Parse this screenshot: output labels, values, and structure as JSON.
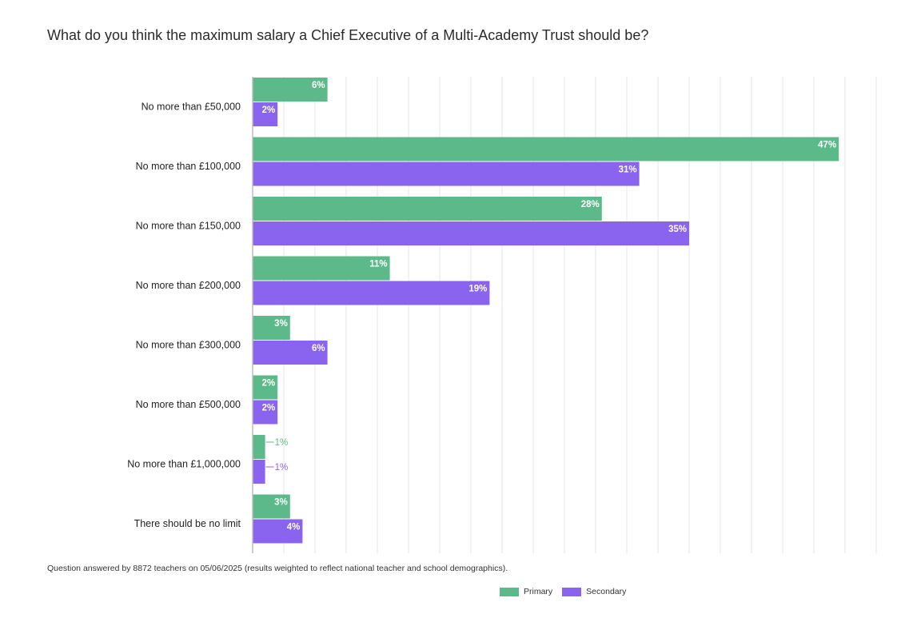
{
  "title": "What do you think the maximum salary a Chief Executive of a Multi-Academy Trust should be?",
  "footnote": "Question answered by 8872 teachers on 05/06/2025 (results weighted to reflect national teacher and school demographics).",
  "colors": {
    "primary": "#5cba8a",
    "secondary": "#8a63ee",
    "grid": "#e6e6e6",
    "axis": "#bdbdbd"
  },
  "chart_data": {
    "type": "bar",
    "orientation": "horizontal",
    "title": "What do you think the maximum salary a Chief Executive of a Multi-Academy Trust should be?",
    "categories": [
      "No more than £50,000",
      "No more than £100,000",
      "No more than £150,000",
      "No more than £200,000",
      "No more than £300,000",
      "No more than £500,000",
      "No more than £1,000,000",
      "There should be no limit"
    ],
    "series": [
      {
        "name": "Primary",
        "values": [
          6,
          47,
          28,
          11,
          3,
          2,
          1,
          3
        ]
      },
      {
        "name": "Secondary",
        "values": [
          2,
          31,
          35,
          19,
          6,
          2,
          1,
          4
        ]
      }
    ],
    "value_suffix": "%",
    "xlim": [
      0,
      50
    ],
    "xlabel": "",
    "ylabel": "",
    "grid": true,
    "legend": "bottom-center"
  }
}
